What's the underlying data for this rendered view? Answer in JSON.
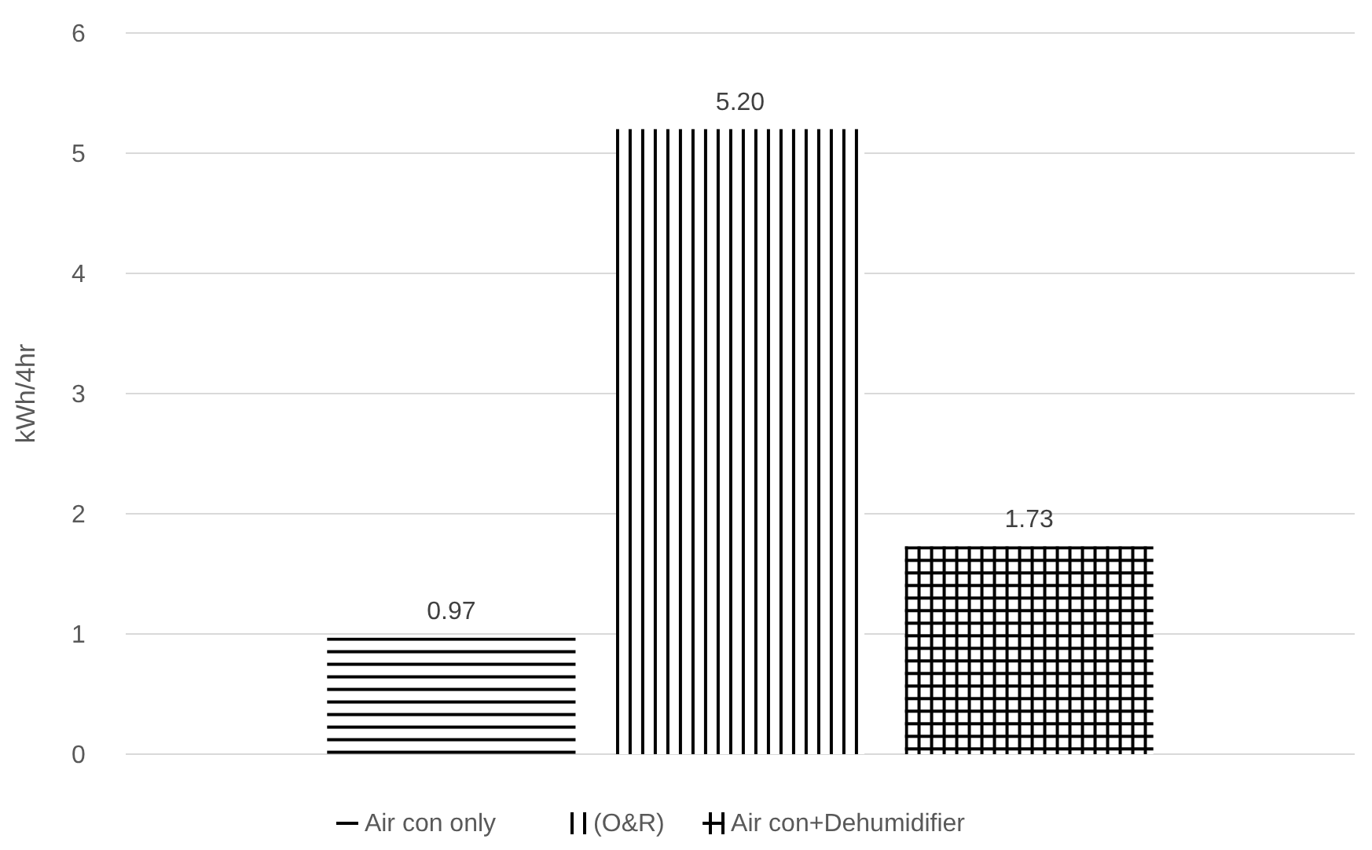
{
  "chart_data": {
    "type": "bar",
    "ylabel": "kWh/4hr",
    "categories": [
      null
    ],
    "series": [
      {
        "name": "Air con only",
        "color": "#000000",
        "values": [
          0.97
        ],
        "value_labels": [
          "0.97"
        ]
      },
      {
        "name": "(O&R)",
        "color": "#000000",
        "values": [
          5.2
        ],
        "value_labels": [
          "5.20"
        ]
      },
      {
        "name": "Air con+Dehumidifier",
        "color": "#000000",
        "values": [
          1.73
        ],
        "value_labels": [
          "1.73"
        ]
      }
    ],
    "ylim": [
      0,
      6
    ],
    "yticks": [
      0,
      1,
      2,
      3,
      4,
      5,
      6
    ],
    "grid": "y",
    "legend": "bottom"
  }
}
